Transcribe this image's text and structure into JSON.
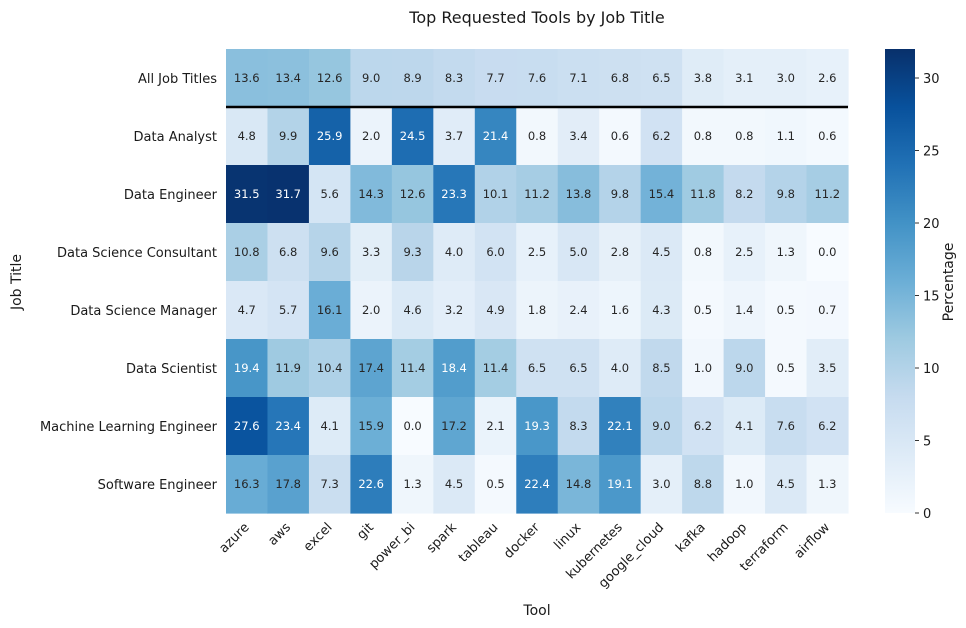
{
  "chart_data": {
    "type": "heatmap",
    "title": "Top Requested Tools by Job Title",
    "xlabel": "Tool",
    "ylabel": "Job Title",
    "colorbar_label": "Percentage",
    "colormap": "Blues",
    "value_range": [
      0,
      32
    ],
    "colorbar_ticks": [
      0,
      5,
      10,
      15,
      20,
      25,
      30
    ],
    "separator_after_row": "All Job Titles",
    "columns": [
      "azure",
      "aws",
      "excel",
      "git",
      "power_bi",
      "spark",
      "tableau",
      "docker",
      "linux",
      "kubernetes",
      "google_cloud",
      "kafka",
      "hadoop",
      "terraform",
      "airflow"
    ],
    "rows": [
      "All Job Titles",
      "Data Analyst",
      "Data Engineer",
      "Data Science Consultant",
      "Data Science Manager",
      "Data Scientist",
      "Machine Learning Engineer",
      "Software Engineer"
    ],
    "values": [
      [
        13.6,
        13.4,
        12.6,
        9.0,
        8.9,
        8.3,
        7.7,
        7.6,
        7.1,
        6.8,
        6.5,
        3.8,
        3.1,
        3.0,
        2.6
      ],
      [
        4.8,
        9.9,
        25.9,
        2.0,
        24.5,
        3.7,
        21.4,
        0.8,
        3.4,
        0.6,
        6.2,
        0.8,
        0.8,
        1.1,
        0.6
      ],
      [
        31.5,
        31.7,
        5.6,
        14.3,
        12.6,
        23.3,
        10.1,
        11.2,
        13.8,
        9.8,
        15.4,
        11.8,
        8.2,
        9.8,
        11.2
      ],
      [
        10.8,
        6.8,
        9.6,
        3.3,
        9.3,
        4.0,
        6.0,
        2.5,
        5.0,
        2.8,
        4.5,
        0.8,
        2.5,
        1.3,
        0.0
      ],
      [
        4.7,
        5.7,
        16.1,
        2.0,
        4.6,
        3.2,
        4.9,
        1.8,
        2.4,
        1.6,
        4.3,
        0.5,
        1.4,
        0.5,
        0.7
      ],
      [
        19.4,
        11.9,
        10.4,
        17.4,
        11.4,
        18.4,
        11.4,
        6.5,
        6.5,
        4.0,
        8.5,
        1.0,
        9.0,
        0.5,
        3.5
      ],
      [
        27.6,
        23.4,
        4.1,
        15.9,
        0.0,
        17.2,
        2.1,
        19.3,
        8.3,
        22.1,
        9.0,
        6.2,
        4.1,
        7.6,
        6.2
      ],
      [
        16.3,
        17.8,
        7.3,
        22.6,
        1.3,
        4.5,
        0.5,
        22.4,
        14.8,
        19.1,
        3.0,
        8.8,
        1.0,
        4.5,
        1.3
      ]
    ]
  }
}
